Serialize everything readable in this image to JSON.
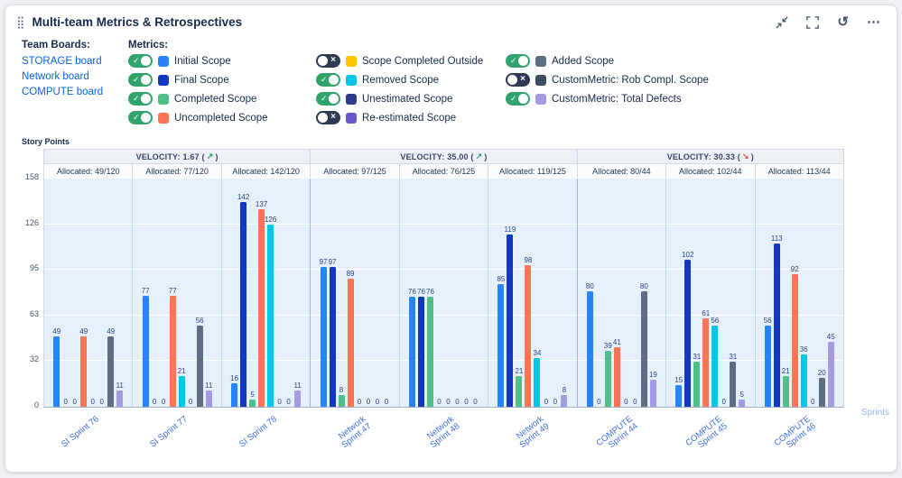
{
  "header": {
    "title": "Multi-team Metrics & Retrospectives",
    "icons": [
      "drag-handle",
      "collapse",
      "fullscreen",
      "history",
      "more-options"
    ]
  },
  "team_boards": {
    "label": "Team Boards:",
    "boards": [
      "STORAGE board",
      "Network board",
      "COMPUTE board"
    ]
  },
  "metrics_legend": {
    "label": "Metrics:",
    "columns": [
      [
        {
          "label": "Initial Scope",
          "color": "#2684FF",
          "enabled": true
        },
        {
          "label": "Final Scope",
          "color": "#1239BD",
          "enabled": true
        },
        {
          "label": "Completed Scope",
          "color": "#4FC08A",
          "enabled": true
        },
        {
          "label": "Uncompleted Scope",
          "color": "#FF7452",
          "enabled": true
        }
      ],
      [
        {
          "label": "Scope Completed Outside",
          "color": "#FFC400",
          "enabled": false
        },
        {
          "label": "Removed Scope",
          "color": "#00C7E6",
          "enabled": true
        },
        {
          "label": "Unestimated Scope",
          "color": "#2F3C8E",
          "enabled": true
        },
        {
          "label": "Re-estimated Scope",
          "color": "#6859C8",
          "enabled": false
        }
      ],
      [
        {
          "label": "Added Scope",
          "color": "#5E6C84",
          "enabled": true
        },
        {
          "label": "CustomMetric: Rob Compl. Scope",
          "color": "#3E4B63",
          "enabled": false
        },
        {
          "label": "CustomMetric: Total Defects",
          "color": "#A49BE3",
          "enabled": true
        }
      ]
    ]
  },
  "chart_data": {
    "type": "bar",
    "title": "",
    "ylabel": "Story Points",
    "xlabel": "Sprints",
    "ylim": [
      0,
      158
    ],
    "yticks": [
      0,
      32,
      63,
      95,
      126,
      158
    ],
    "grid": true,
    "legend_position": "top",
    "series": [
      {
        "name": "Initial Scope",
        "color": "#2684FF"
      },
      {
        "name": "Final Scope",
        "color": "#1239BD"
      },
      {
        "name": "Completed Scope",
        "color": "#4FC08A"
      },
      {
        "name": "Uncompleted Scope",
        "color": "#FF7452"
      },
      {
        "name": "Removed Scope",
        "color": "#00C7E6"
      },
      {
        "name": "Unestimated Scope",
        "color": "#2F3C8E"
      },
      {
        "name": "Added Scope",
        "color": "#5E6C84"
      },
      {
        "name": "CustomMetric: Total Defects",
        "color": "#A49BE3"
      }
    ],
    "velocity_groups": [
      {
        "label": "VELOCITY: 1.67",
        "trend": "up",
        "sprint_span": 3
      },
      {
        "label": "VELOCITY: 35.00",
        "trend": "up",
        "sprint_span": 3
      },
      {
        "label": "VELOCITY: 30.33",
        "trend": "down",
        "sprint_span": 3
      }
    ],
    "trend_colors": {
      "up": "#22A06B",
      "down": "#E2483D"
    },
    "sprints": [
      {
        "name": "SI Sprint 76",
        "label_lines": [
          "SI Sprint 76"
        ],
        "allocated": "Allocated: 49/120",
        "values": [
          49,
          0,
          0,
          49,
          0,
          0,
          49,
          11
        ]
      },
      {
        "name": "SI Sprint 77",
        "label_lines": [
          "SI Sprint 77"
        ],
        "allocated": "Allocated: 77/120",
        "values": [
          77,
          0,
          0,
          77,
          21,
          0,
          56,
          11
        ]
      },
      {
        "name": "SI Sprint 78",
        "label_lines": [
          "SI Sprint 78"
        ],
        "allocated": "Allocated: 142/120",
        "values": [
          16,
          142,
          5,
          137,
          126,
          0,
          0,
          11
        ]
      },
      {
        "name": "Network Sprint 47",
        "label_lines": [
          "Network",
          "Sprint 47"
        ],
        "allocated": "Allocated: 97/125",
        "values": [
          97,
          97,
          8,
          89,
          0,
          0,
          0,
          0
        ]
      },
      {
        "name": "Network Sprint 48",
        "label_lines": [
          "Network",
          "Sprint 48"
        ],
        "allocated": "Allocated: 76/125",
        "values": [
          76,
          76,
          76,
          0,
          0,
          0,
          0,
          0
        ]
      },
      {
        "name": "Network Sprint 49",
        "label_lines": [
          "Network",
          "Sprint 49"
        ],
        "allocated": "Allocated: 119/125",
        "values": [
          85,
          119,
          21,
          98,
          34,
          0,
          0,
          8
        ]
      },
      {
        "name": "COMPUTE Sprint 44",
        "label_lines": [
          "COMPUTE",
          "Sprint 44"
        ],
        "allocated": "Allocated: 80/44",
        "values": [
          80,
          0,
          39,
          41,
          0,
          0,
          80,
          19
        ]
      },
      {
        "name": "COMPUTE Sprint 45",
        "label_lines": [
          "COMPUTE",
          "Sprint 45"
        ],
        "allocated": "Allocated: 102/44",
        "values": [
          15,
          102,
          31,
          61,
          56,
          0,
          31,
          5
        ]
      },
      {
        "name": "COMPUTE Sprint 46",
        "label_lines": [
          "COMPUTE",
          "Sprint 46"
        ],
        "allocated": "Allocated: 113/44",
        "values": [
          56,
          113,
          21,
          92,
          36,
          0,
          20,
          45
        ]
      }
    ]
  }
}
